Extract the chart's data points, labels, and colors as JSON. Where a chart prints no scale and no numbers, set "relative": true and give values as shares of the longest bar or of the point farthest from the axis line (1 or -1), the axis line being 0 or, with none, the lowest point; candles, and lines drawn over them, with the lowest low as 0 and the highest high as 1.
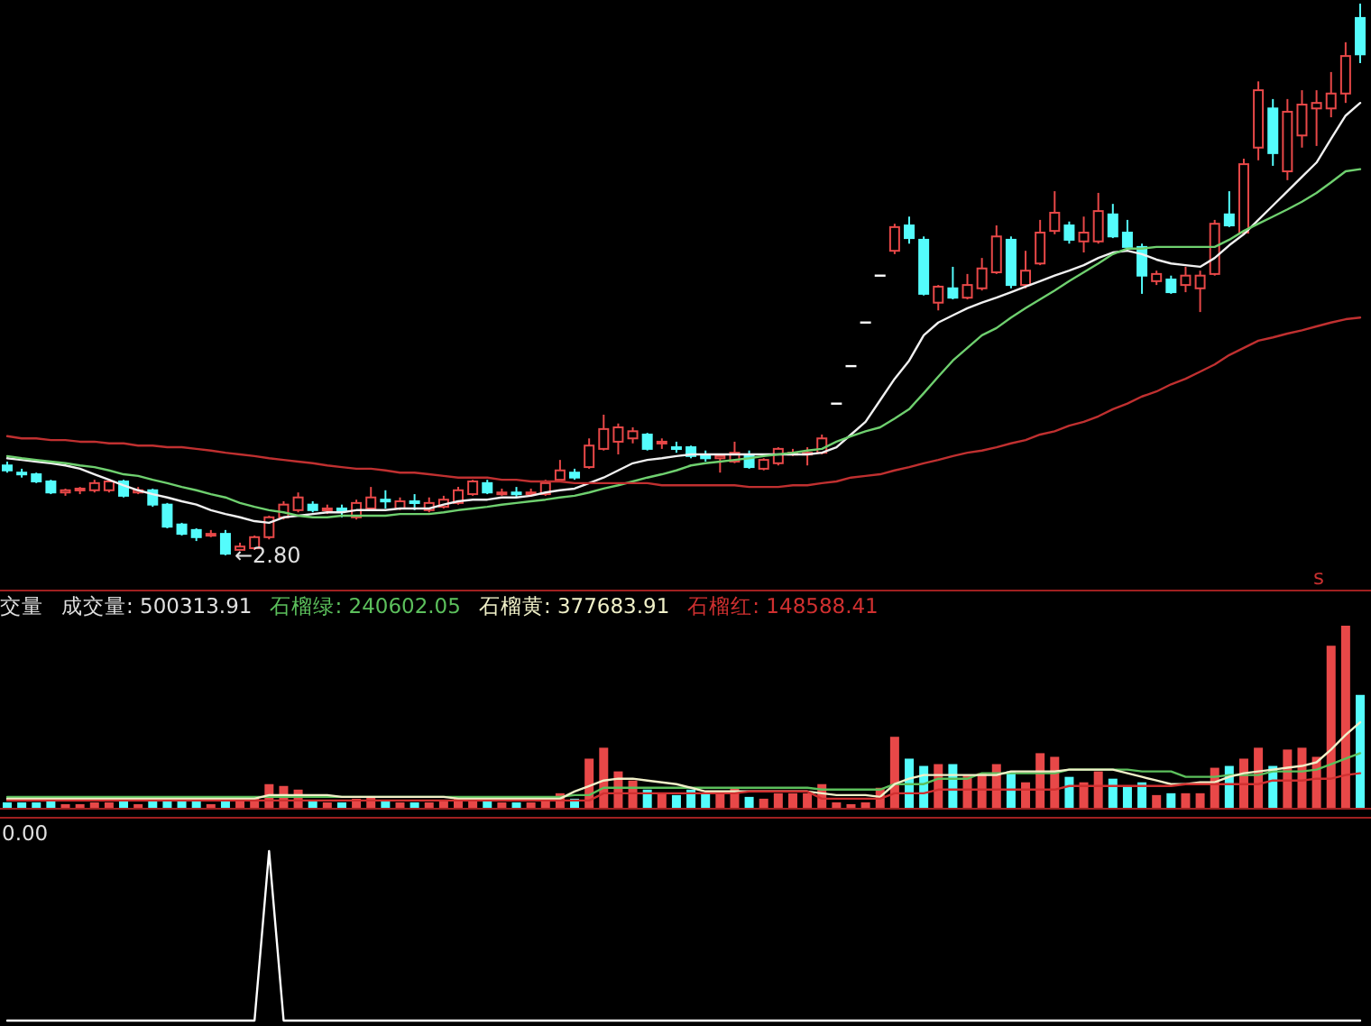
{
  "chart_data": [
    {
      "type": "candlestick",
      "relative": true,
      "categories": [
        null,
        null,
        null,
        null,
        null,
        null,
        null,
        null,
        null,
        null,
        null,
        null,
        null,
        null,
        null,
        null,
        null,
        null,
        null,
        null,
        null,
        null,
        null,
        null,
        null,
        null,
        null,
        null,
        null,
        null,
        null,
        null,
        null,
        null,
        null,
        null,
        null,
        null,
        null,
        null,
        null,
        null,
        null,
        null,
        null,
        null,
        null,
        null,
        null,
        null,
        null,
        null,
        null,
        null,
        null,
        null,
        null,
        null,
        null,
        null,
        null,
        null,
        null,
        null,
        null,
        null,
        null,
        null,
        null,
        null,
        null,
        null,
        null,
        null,
        null,
        null,
        null,
        null,
        null,
        null,
        null,
        null,
        null,
        null,
        null,
        null,
        null,
        null,
        null,
        null,
        null,
        null,
        null,
        null
      ],
      "ohlc": [
        [
          0.163,
          0.17,
          0.15,
          0.154
        ],
        [
          0.15,
          0.157,
          0.141,
          0.147
        ],
        [
          0.147,
          0.15,
          0.131,
          0.134
        ],
        [
          0.134,
          0.137,
          0.111,
          0.114
        ],
        [
          0.114,
          0.121,
          0.108,
          0.118
        ],
        [
          0.118,
          0.124,
          0.111,
          0.121
        ],
        [
          0.118,
          0.137,
          0.114,
          0.131
        ],
        [
          0.118,
          0.137,
          0.114,
          0.134
        ],
        [
          0.134,
          0.137,
          0.105,
          0.108
        ],
        [
          0.114,
          0.124,
          0.111,
          0.118
        ],
        [
          0.118,
          0.121,
          0.088,
          0.092
        ],
        [
          0.092,
          0.095,
          0.049,
          0.052
        ],
        [
          0.056,
          0.059,
          0.036,
          0.039
        ],
        [
          0.046,
          0.049,
          0.026,
          0.033
        ],
        [
          0.036,
          0.046,
          0.033,
          0.039
        ],
        [
          0.039,
          0.046,
          0.0,
          0.003
        ],
        [
          0.01,
          0.023,
          0.01,
          0.016
        ],
        [
          0.013,
          0.036,
          0.01,
          0.033
        ],
        [
          0.033,
          0.072,
          0.029,
          0.069
        ],
        [
          0.069,
          0.098,
          0.065,
          0.092
        ],
        [
          0.082,
          0.114,
          0.078,
          0.105
        ],
        [
          0.092,
          0.098,
          0.078,
          0.082
        ],
        [
          0.082,
          0.092,
          0.075,
          0.085
        ],
        [
          0.085,
          0.092,
          0.069,
          0.082
        ],
        [
          0.069,
          0.101,
          0.065,
          0.095
        ],
        [
          0.085,
          0.124,
          0.082,
          0.105
        ],
        [
          0.101,
          0.118,
          0.085,
          0.098
        ],
        [
          0.085,
          0.105,
          0.082,
          0.098
        ],
        [
          0.098,
          0.111,
          0.082,
          0.095
        ],
        [
          0.082,
          0.105,
          0.078,
          0.095
        ],
        [
          0.088,
          0.108,
          0.085,
          0.101
        ],
        [
          0.095,
          0.124,
          0.092,
          0.118
        ],
        [
          0.111,
          0.137,
          0.108,
          0.134
        ],
        [
          0.131,
          0.137,
          0.111,
          0.114
        ],
        [
          0.111,
          0.121,
          0.108,
          0.114
        ],
        [
          0.114,
          0.124,
          0.105,
          0.111
        ],
        [
          0.111,
          0.121,
          0.108,
          0.114
        ],
        [
          0.111,
          0.137,
          0.108,
          0.131
        ],
        [
          0.137,
          0.173,
          0.134,
          0.154
        ],
        [
          0.15,
          0.157,
          0.137,
          0.141
        ],
        [
          0.16,
          0.212,
          0.157,
          0.199
        ],
        [
          0.193,
          0.255,
          0.19,
          0.229
        ],
        [
          0.206,
          0.239,
          0.183,
          0.232
        ],
        [
          0.212,
          0.232,
          0.203,
          0.225
        ],
        [
          0.219,
          0.222,
          0.19,
          0.193
        ],
        [
          0.203,
          0.212,
          0.193,
          0.206
        ],
        [
          0.196,
          0.206,
          0.186,
          0.193
        ],
        [
          0.196,
          0.199,
          0.176,
          0.18
        ],
        [
          0.18,
          0.19,
          0.17,
          0.176
        ],
        [
          0.176,
          0.183,
          0.15,
          0.18
        ],
        [
          0.17,
          0.206,
          0.167,
          0.186
        ],
        [
          0.183,
          0.19,
          0.157,
          0.16
        ],
        [
          0.157,
          0.176,
          0.154,
          0.173
        ],
        [
          0.167,
          0.196,
          0.163,
          0.193
        ],
        [
          0.183,
          0.193,
          0.18,
          0.186
        ],
        [
          0.183,
          0.196,
          0.163,
          0.186
        ],
        [
          0.186,
          0.219,
          0.183,
          0.212
        ],
        [
          0.275,
          0.275,
          0.275,
          0.275
        ],
        [
          0.343,
          0.343,
          0.343,
          0.343
        ],
        [
          0.422,
          0.422,
          0.422,
          0.422
        ],
        [
          0.507,
          0.507,
          0.507,
          0.507
        ],
        [
          0.552,
          0.601,
          0.546,
          0.595
        ],
        [
          0.598,
          0.614,
          0.565,
          0.575
        ],
        [
          0.572,
          0.578,
          0.471,
          0.474
        ],
        [
          0.458,
          0.49,
          0.444,
          0.487
        ],
        [
          0.484,
          0.523,
          0.464,
          0.467
        ],
        [
          0.467,
          0.51,
          0.464,
          0.49
        ],
        [
          0.484,
          0.539,
          0.48,
          0.52
        ],
        [
          0.513,
          0.598,
          0.51,
          0.578
        ],
        [
          0.572,
          0.578,
          0.484,
          0.49
        ],
        [
          0.49,
          0.552,
          0.484,
          0.516
        ],
        [
          0.529,
          0.608,
          0.526,
          0.585
        ],
        [
          0.588,
          0.66,
          0.582,
          0.621
        ],
        [
          0.598,
          0.605,
          0.565,
          0.572
        ],
        [
          0.569,
          0.614,
          0.549,
          0.585
        ],
        [
          0.569,
          0.657,
          0.565,
          0.624
        ],
        [
          0.618,
          0.637,
          0.575,
          0.578
        ],
        [
          0.585,
          0.608,
          0.556,
          0.559
        ],
        [
          0.559,
          0.565,
          0.474,
          0.507
        ],
        [
          0.497,
          0.516,
          0.49,
          0.51
        ],
        [
          0.5,
          0.507,
          0.474,
          0.477
        ],
        [
          0.49,
          0.523,
          0.477,
          0.507
        ],
        [
          0.484,
          0.516,
          0.441,
          0.507
        ],
        [
          0.51,
          0.608,
          0.507,
          0.601
        ],
        [
          0.618,
          0.66,
          0.595,
          0.598
        ],
        [
          0.585,
          0.719,
          0.582,
          0.709
        ],
        [
          0.739,
          0.859,
          0.716,
          0.843
        ],
        [
          0.81,
          0.827,
          0.706,
          0.729
        ],
        [
          0.696,
          0.827,
          0.68,
          0.804
        ],
        [
          0.761,
          0.843,
          0.739,
          0.817
        ],
        [
          0.81,
          0.843,
          0.742,
          0.82
        ],
        [
          0.81,
          0.876,
          0.794,
          0.837
        ],
        [
          0.837,
          0.93,
          0.82,
          0.905
        ],
        [
          0.974,
          1.0,
          0.892,
          0.908
        ]
      ],
      "colors": [
        "#54fcfc",
        "#54fcfc",
        "#54fcfc",
        "#54fcfc",
        "#e84848",
        "#e84848",
        "#e84848",
        "#e84848",
        "#54fcfc",
        "#e84848",
        "#54fcfc",
        "#54fcfc",
        "#54fcfc",
        "#54fcfc",
        "#e84848",
        "#54fcfc",
        "#e84848",
        "#e84848",
        "#e84848",
        "#e84848",
        "#e84848",
        "#54fcfc",
        "#e84848",
        "#54fcfc",
        "#e84848",
        "#e84848",
        "#54fcfc",
        "#e84848",
        "#54fcfc",
        "#e84848",
        "#e84848",
        "#e84848",
        "#e84848",
        "#54fcfc",
        "#e84848",
        "#54fcfc",
        "#e84848",
        "#e84848",
        "#e84848",
        "#54fcfc",
        "#e84848",
        "#e84848",
        "#e84848",
        "#e84848",
        "#54fcfc",
        "#e84848",
        "#54fcfc",
        "#54fcfc",
        "#54fcfc",
        "#e84848",
        "#e84848",
        "#54fcfc",
        "#e84848",
        "#e84848",
        "#e84848",
        "#e84848",
        "#e84848",
        "#ffffff",
        "#ffffff",
        "#ffffff",
        "#ffffff",
        "#e84848",
        "#54fcfc",
        "#54fcfc",
        "#e84848",
        "#54fcfc",
        "#e84848",
        "#e84848",
        "#e84848",
        "#54fcfc",
        "#e84848",
        "#e84848",
        "#e84848",
        "#54fcfc",
        "#e84848",
        "#e84848",
        "#54fcfc",
        "#54fcfc",
        "#54fcfc",
        "#e84848",
        "#54fcfc",
        "#e84848",
        "#e84848",
        "#e84848",
        "#54fcfc",
        "#e84848",
        "#e84848",
        "#54fcfc",
        "#e84848",
        "#e84848",
        "#e84848",
        "#e84848",
        "#e84848",
        "#54fcfc"
      ],
      "series": [
        {
          "type": "line",
          "color": "#f0f0f0",
          "values": [
            0.176,
            0.173,
            0.17,
            0.167,
            0.163,
            0.157,
            0.147,
            0.137,
            0.127,
            0.118,
            0.111,
            0.105,
            0.098,
            0.092,
            0.082,
            0.075,
            0.069,
            0.062,
            0.059,
            0.069,
            0.072,
            0.075,
            0.078,
            0.078,
            0.082,
            0.082,
            0.082,
            0.085,
            0.085,
            0.085,
            0.092,
            0.098,
            0.101,
            0.101,
            0.105,
            0.105,
            0.108,
            0.114,
            0.118,
            0.121,
            0.131,
            0.141,
            0.154,
            0.167,
            0.173,
            0.176,
            0.18,
            0.183,
            0.183,
            0.183,
            0.183,
            0.183,
            0.183,
            0.183,
            0.183,
            0.183,
            0.186,
            0.196,
            0.219,
            0.242,
            0.281,
            0.32,
            0.353,
            0.399,
            0.422,
            0.435,
            0.448,
            0.458,
            0.467,
            0.477,
            0.487,
            0.497,
            0.507,
            0.516,
            0.526,
            0.539,
            0.549,
            0.552,
            0.546,
            0.536,
            0.529,
            0.526,
            0.523,
            0.539,
            0.562,
            0.582,
            0.608,
            0.634,
            0.66,
            0.686,
            0.712,
            0.755,
            0.797,
            0.82
          ]
        },
        {
          "type": "line",
          "color": "#6fd06f",
          "values": [
            0.18,
            0.176,
            0.173,
            0.17,
            0.167,
            0.163,
            0.16,
            0.154,
            0.147,
            0.144,
            0.137,
            0.131,
            0.124,
            0.118,
            0.111,
            0.105,
            0.095,
            0.088,
            0.082,
            0.078,
            0.072,
            0.069,
            0.069,
            0.072,
            0.072,
            0.072,
            0.072,
            0.075,
            0.075,
            0.075,
            0.078,
            0.082,
            0.085,
            0.088,
            0.092,
            0.095,
            0.098,
            0.101,
            0.105,
            0.108,
            0.114,
            0.121,
            0.127,
            0.134,
            0.141,
            0.147,
            0.154,
            0.163,
            0.167,
            0.17,
            0.173,
            0.176,
            0.18,
            0.183,
            0.186,
            0.19,
            0.193,
            0.206,
            0.216,
            0.225,
            0.232,
            0.248,
            0.265,
            0.294,
            0.324,
            0.353,
            0.376,
            0.399,
            0.412,
            0.431,
            0.448,
            0.464,
            0.48,
            0.497,
            0.513,
            0.529,
            0.546,
            0.556,
            0.556,
            0.559,
            0.559,
            0.559,
            0.559,
            0.559,
            0.572,
            0.588,
            0.601,
            0.614,
            0.627,
            0.641,
            0.657,
            0.676,
            0.696,
            0.7
          ]
        },
        {
          "type": "line",
          "color": "#c03030",
          "values": [
            0.216,
            0.212,
            0.212,
            0.209,
            0.209,
            0.206,
            0.206,
            0.203,
            0.203,
            0.199,
            0.199,
            0.196,
            0.196,
            0.193,
            0.19,
            0.186,
            0.183,
            0.18,
            0.176,
            0.173,
            0.17,
            0.167,
            0.163,
            0.16,
            0.157,
            0.157,
            0.154,
            0.15,
            0.15,
            0.147,
            0.144,
            0.141,
            0.141,
            0.141,
            0.137,
            0.137,
            0.134,
            0.134,
            0.134,
            0.131,
            0.131,
            0.131,
            0.131,
            0.131,
            0.131,
            0.127,
            0.127,
            0.127,
            0.127,
            0.127,
            0.127,
            0.124,
            0.124,
            0.124,
            0.127,
            0.127,
            0.131,
            0.134,
            0.141,
            0.144,
            0.147,
            0.154,
            0.16,
            0.167,
            0.173,
            0.18,
            0.186,
            0.19,
            0.196,
            0.203,
            0.209,
            0.219,
            0.225,
            0.235,
            0.242,
            0.252,
            0.265,
            0.275,
            0.288,
            0.297,
            0.31,
            0.32,
            0.333,
            0.346,
            0.363,
            0.376,
            0.389,
            0.395,
            0.402,
            0.408,
            0.415,
            0.422,
            0.428,
            0.431
          ]
        }
      ],
      "annotations": [
        "←2.80",
        "s"
      ]
    },
    {
      "type": "bar",
      "relative": true,
      "title": "交量",
      "categories": [
        null,
        null,
        null,
        null,
        null,
        null,
        null,
        null,
        null,
        null,
        null,
        null,
        null,
        null,
        null,
        null,
        null,
        null,
        null,
        null,
        null,
        null,
        null,
        null,
        null,
        null,
        null,
        null,
        null,
        null,
        null,
        null,
        null,
        null,
        null,
        null,
        null,
        null,
        null,
        null,
        null,
        null,
        null,
        null,
        null,
        null,
        null,
        null,
        null,
        null,
        null,
        null,
        null,
        null,
        null,
        null,
        null,
        null,
        null,
        null,
        null,
        null,
        null,
        null,
        null,
        null,
        null,
        null,
        null,
        null,
        null,
        null,
        null,
        null,
        null,
        null,
        null,
        null,
        null,
        null,
        null,
        null,
        null,
        null,
        null,
        null,
        null,
        null,
        null,
        null,
        null,
        null,
        null,
        null
      ],
      "series": [
        {
          "type": "bar",
          "colors": [
            "#54fcfc",
            "#54fcfc",
            "#54fcfc",
            "#54fcfc",
            "#e84848",
            "#e84848",
            "#e84848",
            "#e84848",
            "#54fcfc",
            "#e84848",
            "#54fcfc",
            "#54fcfc",
            "#54fcfc",
            "#54fcfc",
            "#e84848",
            "#54fcfc",
            "#e84848",
            "#e84848",
            "#e84848",
            "#e84848",
            "#e84848",
            "#54fcfc",
            "#e84848",
            "#54fcfc",
            "#e84848",
            "#e84848",
            "#54fcfc",
            "#e84848",
            "#54fcfc",
            "#e84848",
            "#e84848",
            "#e84848",
            "#e84848",
            "#54fcfc",
            "#e84848",
            "#54fcfc",
            "#e84848",
            "#e84848",
            "#e84848",
            "#54fcfc",
            "#e84848",
            "#e84848",
            "#e84848",
            "#e84848",
            "#54fcfc",
            "#e84848",
            "#54fcfc",
            "#54fcfc",
            "#54fcfc",
            "#e84848",
            "#e84848",
            "#54fcfc",
            "#e84848",
            "#e84848",
            "#e84848",
            "#e84848",
            "#e84848",
            "#e84848",
            "#e84848",
            "#e84848",
            "#e84848",
            "#e84848",
            "#54fcfc",
            "#54fcfc",
            "#e84848",
            "#54fcfc",
            "#e84848",
            "#e84848",
            "#e84848",
            "#54fcfc",
            "#e84848",
            "#e84848",
            "#e84848",
            "#54fcfc",
            "#e84848",
            "#e84848",
            "#54fcfc",
            "#54fcfc",
            "#54fcfc",
            "#e84848",
            "#54fcfc",
            "#e84848",
            "#e84848",
            "#e84848",
            "#54fcfc",
            "#e84848",
            "#e84848",
            "#54fcfc",
            "#e84848",
            "#e84848",
            "#e84848",
            "#e84848",
            "#e84848",
            "#54fcfc"
          ],
          "values": [
            0.03,
            0.03,
            0.03,
            0.04,
            0.02,
            0.02,
            0.03,
            0.03,
            0.04,
            0.02,
            0.04,
            0.05,
            0.04,
            0.04,
            0.02,
            0.06,
            0.04,
            0.05,
            0.13,
            0.12,
            0.1,
            0.04,
            0.03,
            0.03,
            0.05,
            0.06,
            0.04,
            0.03,
            0.03,
            0.03,
            0.04,
            0.05,
            0.06,
            0.04,
            0.03,
            0.03,
            0.03,
            0.05,
            0.08,
            0.05,
            0.27,
            0.33,
            0.2,
            0.15,
            0.1,
            0.08,
            0.07,
            0.1,
            0.08,
            0.08,
            0.11,
            0.06,
            0.05,
            0.08,
            0.08,
            0.08,
            0.13,
            0.03,
            0.02,
            0.03,
            0.11,
            0.39,
            0.27,
            0.23,
            0.24,
            0.24,
            0.18,
            0.19,
            0.24,
            0.2,
            0.14,
            0.3,
            0.28,
            0.17,
            0.14,
            0.2,
            0.16,
            0.12,
            0.14,
            0.07,
            0.08,
            0.08,
            0.08,
            0.22,
            0.23,
            0.27,
            0.33,
            0.23,
            0.32,
            0.33,
            0.28,
            0.89,
            1,
            0.62
          ]
        },
        {
          "type": "line",
          "color": "#5cc05c",
          "values": [
            0.06,
            0.06,
            0.06,
            0.06,
            0.06,
            0.06,
            0.06,
            0.06,
            0.06,
            0.06,
            0.06,
            0.06,
            0.06,
            0.06,
            0.06,
            0.06,
            0.06,
            0.06,
            0.06,
            0.06,
            0.06,
            0.06,
            0.06,
            0.06,
            0.06,
            0.06,
            0.06,
            0.06,
            0.06,
            0.06,
            0.06,
            0.06,
            0.06,
            0.06,
            0.06,
            0.06,
            0.06,
            0.06,
            0.06,
            0.07,
            0.07,
            0.11,
            0.11,
            0.11,
            0.11,
            0.11,
            0.11,
            0.11,
            0.11,
            0.11,
            0.11,
            0.11,
            0.11,
            0.11,
            0.11,
            0.11,
            0.1,
            0.1,
            0.1,
            0.1,
            0.1,
            0.13,
            0.13,
            0.13,
            0.16,
            0.16,
            0.16,
            0.19,
            0.19,
            0.19,
            0.19,
            0.19,
            0.19,
            0.21,
            0.21,
            0.21,
            0.21,
            0.21,
            0.2,
            0.2,
            0.2,
            0.17,
            0.17,
            0.17,
            0.18,
            0.18,
            0.18,
            0.2,
            0.2,
            0.2,
            0.21,
            0.24,
            0.27,
            0.3
          ]
        },
        {
          "type": "line",
          "color": "#f0f0c8",
          "values": [
            0.05,
            0.05,
            0.05,
            0.05,
            0.05,
            0.05,
            0.05,
            0.05,
            0.05,
            0.05,
            0.05,
            0.05,
            0.05,
            0.05,
            0.05,
            0.05,
            0.05,
            0.05,
            0.07,
            0.07,
            0.07,
            0.07,
            0.07,
            0.06,
            0.06,
            0.06,
            0.06,
            0.06,
            0.06,
            0.06,
            0.06,
            0.05,
            0.05,
            0.05,
            0.05,
            0.05,
            0.05,
            0.05,
            0.05,
            0.09,
            0.12,
            0.15,
            0.16,
            0.16,
            0.15,
            0.14,
            0.13,
            0.11,
            0.09,
            0.09,
            0.09,
            0.09,
            0.09,
            0.09,
            0.09,
            0.09,
            0.08,
            0.07,
            0.07,
            0.07,
            0.06,
            0.13,
            0.16,
            0.18,
            0.18,
            0.18,
            0.18,
            0.18,
            0.18,
            0.2,
            0.2,
            0.2,
            0.2,
            0.21,
            0.21,
            0.21,
            0.21,
            0.19,
            0.17,
            0.15,
            0.13,
            0.13,
            0.14,
            0.14,
            0.17,
            0.19,
            0.2,
            0.21,
            0.22,
            0.23,
            0.25,
            0.32,
            0.4,
            0.47
          ]
        },
        {
          "type": "line",
          "color": "#d03030",
          "values": [
            0.04,
            0.04,
            0.04,
            0.04,
            0.04,
            0.04,
            0.04,
            0.04,
            0.04,
            0.04,
            0.04,
            0.04,
            0.04,
            0.04,
            0.04,
            0.04,
            0.04,
            0.04,
            0.04,
            0.04,
            0.04,
            0.04,
            0.04,
            0.04,
            0.04,
            0.04,
            0.04,
            0.04,
            0.04,
            0.04,
            0.04,
            0.04,
            0.04,
            0.04,
            0.04,
            0.04,
            0.04,
            0.04,
            0.04,
            0.04,
            0.04,
            0.08,
            0.08,
            0.08,
            0.08,
            0.08,
            0.08,
            0.08,
            0.08,
            0.08,
            0.08,
            0.09,
            0.09,
            0.09,
            0.09,
            0.09,
            0.05,
            0.05,
            0.05,
            0.05,
            0.05,
            0.08,
            0.08,
            0.08,
            0.1,
            0.1,
            0.1,
            0.1,
            0.1,
            0.1,
            0.1,
            0.1,
            0.1,
            0.12,
            0.12,
            0.12,
            0.12,
            0.12,
            0.12,
            0.12,
            0.12,
            0.13,
            0.13,
            0.13,
            0.13,
            0.13,
            0.13,
            0.15,
            0.15,
            0.15,
            0.16,
            0.16,
            0.18,
            0.19
          ]
        }
      ],
      "annotations": [
        "成交量: 500313.91",
        "石榴绿: 240602.05",
        "石榴黄: 377683.91",
        "石榴红: 148588.41"
      ]
    },
    {
      "type": "line",
      "relative": true,
      "color": "#ffffff",
      "categories": [
        null,
        null,
        null,
        null,
        null,
        null,
        null,
        null,
        null,
        null,
        null,
        null,
        null,
        null,
        null,
        null,
        null,
        null,
        null,
        null,
        null,
        null,
        null,
        null,
        null,
        null,
        null,
        null,
        null,
        null,
        null,
        null,
        null,
        null,
        null,
        null,
        null,
        null,
        null,
        null,
        null,
        null,
        null,
        null,
        null,
        null,
        null,
        null,
        null,
        null,
        null,
        null,
        null,
        null,
        null,
        null,
        null,
        null,
        null,
        null,
        null,
        null,
        null,
        null,
        null,
        null,
        null,
        null,
        null,
        null,
        null,
        null,
        null,
        null,
        null,
        null,
        null,
        null,
        null,
        null,
        null,
        null,
        null,
        null,
        null,
        null,
        null,
        null,
        null,
        null,
        null,
        null,
        null,
        null
      ],
      "values": [
        0,
        0,
        0,
        0,
        0,
        0,
        0,
        0,
        0,
        0,
        0,
        0,
        0,
        0,
        0,
        0,
        0,
        0,
        1,
        0,
        0,
        0,
        0,
        0,
        0,
        0,
        0,
        0,
        0,
        0,
        0,
        0,
        0,
        0,
        0,
        0,
        0,
        0,
        0,
        0,
        0,
        0,
        0,
        0,
        0,
        0,
        0,
        0,
        0,
        0,
        0,
        0,
        0,
        0,
        0,
        0,
        0,
        0,
        0,
        0,
        0,
        0,
        0,
        0,
        0,
        0,
        0,
        0,
        0,
        0,
        0,
        0,
        0,
        0,
        0,
        0,
        0,
        0,
        0,
        0,
        0,
        0,
        0,
        0,
        0,
        0,
        0,
        0,
        0,
        0,
        0,
        0,
        0,
        0
      ],
      "annotations": [
        "0.00"
      ]
    }
  ]
}
